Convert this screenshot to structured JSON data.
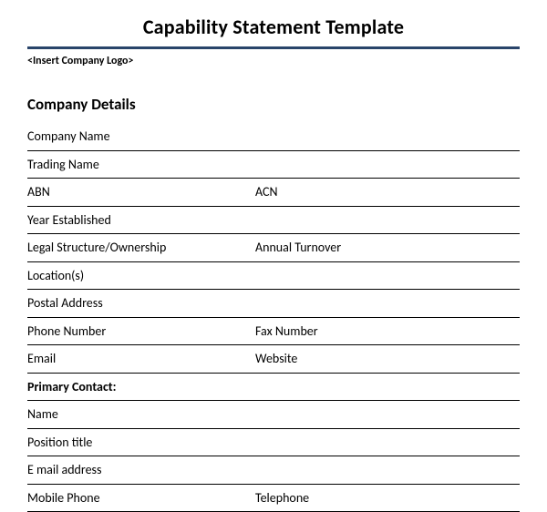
{
  "document": {
    "title": "Capability Statement Template",
    "title_fontsize": 22,
    "title_weight": "bold",
    "logo_placeholder": "<Insert Company Logo>",
    "section_heading": "Company Details",
    "section_heading_fontsize": 17,
    "colors": {
      "background": "#ffffff",
      "text": "#000000",
      "title_rule": "#29446a",
      "row_rule": "#000000"
    },
    "typography": {
      "body_fontsize": 14,
      "font_family": "Calibri, Arial, sans-serif"
    },
    "rows": [
      {
        "left": "Company Name",
        "right": ""
      },
      {
        "left": "Trading Name",
        "right": ""
      },
      {
        "left": "ABN",
        "right": "ACN"
      },
      {
        "left": "Year Established",
        "right": ""
      },
      {
        "left": "Legal Structure/Ownership",
        "right": "Annual Turnover"
      },
      {
        "left": "Location(s)",
        "right": ""
      },
      {
        "left": "Postal Address",
        "right": ""
      },
      {
        "left": "Phone Number",
        "right": "Fax Number"
      },
      {
        "left": "Email",
        "right": "Website"
      },
      {
        "left": "Primary Contact:",
        "right": "",
        "bold": true
      },
      {
        "left": "Name",
        "right": ""
      },
      {
        "left": "Position title",
        "right": ""
      },
      {
        "left": "E mail address",
        "right": ""
      },
      {
        "left": "Mobile Phone",
        "right": "Telephone"
      }
    ]
  }
}
